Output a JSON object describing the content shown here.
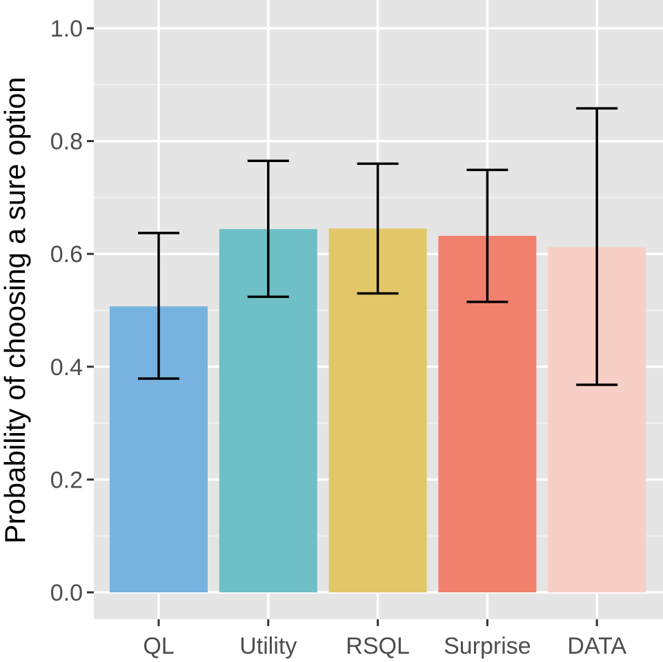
{
  "chart_data": {
    "type": "bar",
    "title": "",
    "xlabel": "",
    "ylabel": "Probability of choosing a sure option",
    "ylim": [
      0,
      1.05
    ],
    "yticks": [
      0.0,
      0.2,
      0.4,
      0.6,
      0.8,
      1.0
    ],
    "ytick_labels": [
      "0.0",
      "0.2",
      "0.4",
      "0.6",
      "0.8",
      "1.0"
    ],
    "grid": true,
    "legend": "none",
    "categories": [
      "QL",
      "Utility",
      "RSQL",
      "Surprise",
      "DATA"
    ],
    "values": [
      0.507,
      0.644,
      0.645,
      0.632,
      0.612
    ],
    "error_low": [
      0.379,
      0.524,
      0.53,
      0.515,
      0.368
    ],
    "error_high": [
      0.637,
      0.765,
      0.76,
      0.749,
      0.858
    ],
    "colors": [
      "#74afde",
      "#69bdc4",
      "#e1c564",
      "#f17c68",
      "#f6cdc5"
    ]
  }
}
